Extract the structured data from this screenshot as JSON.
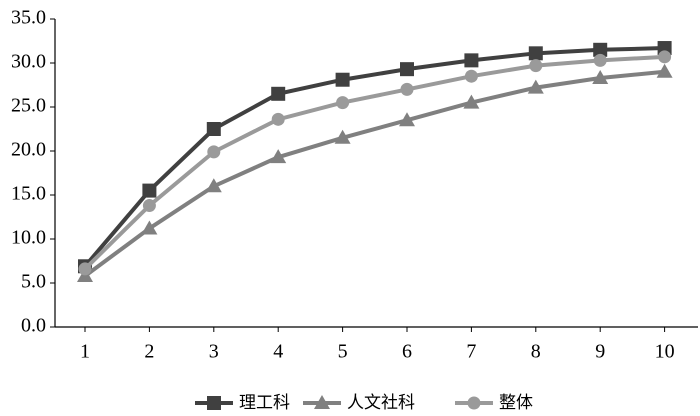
{
  "chart_data": {
    "type": "line",
    "categories": [
      "1",
      "2",
      "3",
      "4",
      "5",
      "6",
      "7",
      "8",
      "9",
      "10"
    ],
    "series": [
      {
        "name": "理工科",
        "color": "#404040",
        "marker": "square",
        "values": [
          6.9,
          15.5,
          22.5,
          26.5,
          28.1,
          29.3,
          30.3,
          31.1,
          31.5,
          31.7
        ]
      },
      {
        "name": "人文社科",
        "color": "#808080",
        "marker": "triangle",
        "values": [
          5.8,
          11.2,
          16.0,
          19.3,
          21.5,
          23.5,
          25.5,
          27.2,
          28.3,
          29.0
        ]
      },
      {
        "name": "整体",
        "color": "#9a9a9a",
        "marker": "circle",
        "values": [
          6.6,
          13.8,
          19.9,
          23.6,
          25.5,
          27.0,
          28.5,
          29.7,
          30.3,
          30.7
        ]
      }
    ],
    "ylim": [
      0,
      35
    ],
    "yticks": [
      {
        "value": 0,
        "label": "0.0"
      },
      {
        "value": 5,
        "label": "5.0"
      },
      {
        "value": 10,
        "label": "10.0"
      },
      {
        "value": 15,
        "label": "15.0"
      },
      {
        "value": 20,
        "label": "20.0"
      },
      {
        "value": 25,
        "label": "25.0"
      },
      {
        "value": 30,
        "label": "30.0"
      },
      {
        "value": 35,
        "label": "35.0"
      }
    ],
    "grid": false,
    "legend": "bottom"
  }
}
